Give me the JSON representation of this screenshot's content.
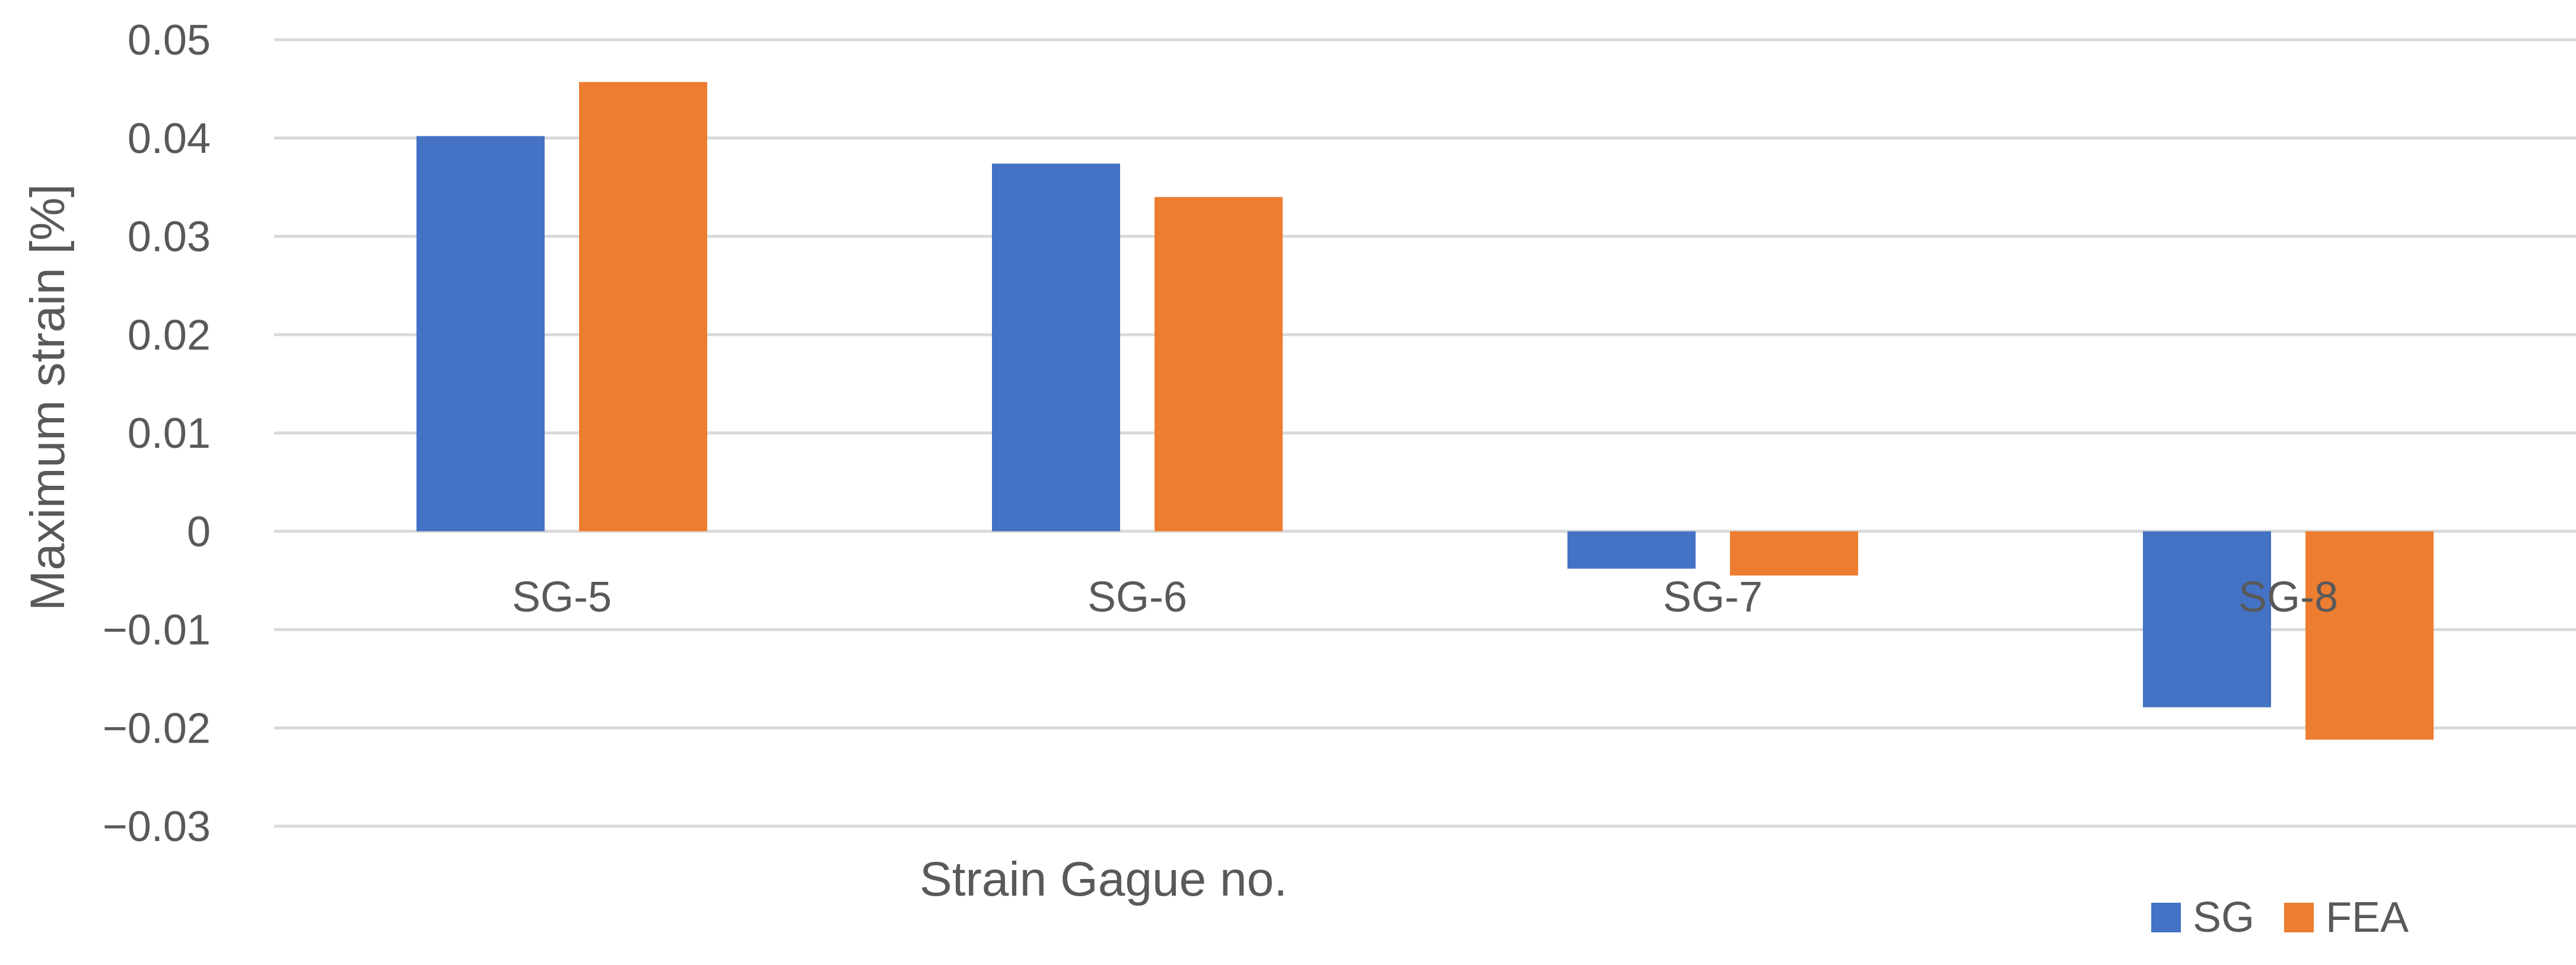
{
  "chart_data": {
    "type": "bar",
    "categories": [
      "SG-5",
      "SG-6",
      "SG-7",
      "SG-8"
    ],
    "series": [
      {
        "name": "SG",
        "color": "#4472C4",
        "values": [
          0.0402,
          0.0374,
          -0.0038,
          -0.0179
        ]
      },
      {
        "name": "FEA",
        "color": "#ED7D31",
        "values": [
          0.0457,
          0.034,
          -0.0045,
          -0.0212
        ]
      }
    ],
    "title": "",
    "xlabel": "Strain Gague no.",
    "ylabel": "Maximum strain [%]",
    "ylim": [
      -0.03,
      0.05
    ],
    "yticks": [
      0.05,
      0.04,
      0.03,
      0.02,
      0.01,
      0,
      -0.01,
      -0.02,
      -0.03
    ],
    "ytick_labels": [
      "0.05",
      "0.04",
      "0.03",
      "0.02",
      "0.01",
      "0",
      "−0.01",
      "−0.02",
      "−0.03"
    ],
    "grid": true,
    "legend_position": "bottom-right",
    "gridline_color": "#D9D9D9"
  }
}
